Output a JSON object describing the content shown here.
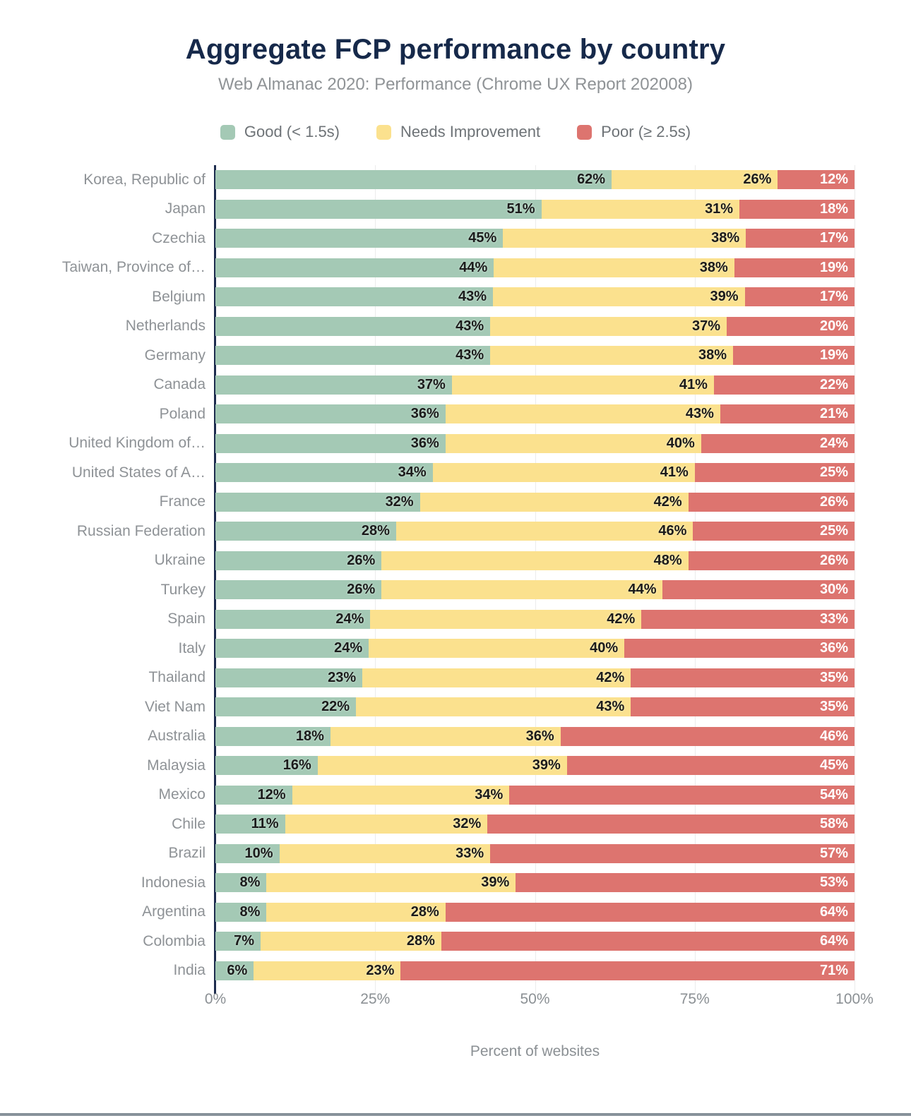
{
  "header": {
    "title": "Aggregate FCP performance by country",
    "subtitle": "Web Almanac 2020: Performance (Chrome UX Report 202008)"
  },
  "axis": {
    "ticks": [
      "0%",
      "25%",
      "50%",
      "75%",
      "100%"
    ],
    "tick_positions": [
      0,
      25,
      50,
      75,
      100
    ],
    "xlabel": "Percent of websites"
  },
  "colors": {
    "good": "#a4c9b5",
    "needs_improvement": "#fbe18e",
    "poor": "#dd746f",
    "title_navy": "#16294a",
    "axis_line": "#1d2c4e",
    "gridline": "#ececec"
  },
  "chart_data": {
    "type": "bar",
    "stacked": true,
    "orientation": "horizontal",
    "title": "Aggregate FCP performance by country",
    "subtitle": "Web Almanac 2020: Performance (Chrome UX Report 202008)",
    "xlabel": "Percent of websites",
    "xlim": [
      0,
      100
    ],
    "x_ticks": [
      0,
      25,
      50,
      75,
      100
    ],
    "grid": true,
    "legend_position": "top",
    "value_label_format": "percent",
    "categories": [
      "Korea, Republic of",
      "Japan",
      "Czechia",
      "Taiwan, Province of…",
      "Belgium",
      "Netherlands",
      "Germany",
      "Canada",
      "Poland",
      "United Kingdom of…",
      "United States of A…",
      "France",
      "Russian Federation",
      "Ukraine",
      "Turkey",
      "Spain",
      "Italy",
      "Thailand",
      "Viet Nam",
      "Australia",
      "Malaysia",
      "Mexico",
      "Chile",
      "Brazil",
      "Indonesia",
      "Argentina",
      "Colombia",
      "India"
    ],
    "series": [
      {
        "name": "Good (< 1.5s)",
        "color": "#a4c9b5",
        "values": [
          62,
          51,
          45,
          44,
          43,
          43,
          43,
          37,
          36,
          36,
          34,
          32,
          28,
          26,
          26,
          24,
          24,
          23,
          22,
          18,
          16,
          12,
          11,
          10,
          8,
          8,
          7,
          6
        ]
      },
      {
        "name": "Needs Improvement",
        "color": "#fbe18e",
        "values": [
          26,
          31,
          38,
          38,
          39,
          37,
          38,
          41,
          43,
          40,
          41,
          42,
          46,
          48,
          44,
          42,
          40,
          42,
          43,
          36,
          39,
          34,
          32,
          33,
          39,
          28,
          28,
          23
        ]
      },
      {
        "name": "Poor (≥ 2.5s)",
        "color": "#dd746f",
        "values": [
          12,
          18,
          17,
          19,
          17,
          20,
          19,
          22,
          21,
          24,
          25,
          26,
          25,
          26,
          30,
          33,
          36,
          35,
          35,
          46,
          45,
          54,
          58,
          57,
          53,
          64,
          64,
          71
        ]
      }
    ]
  }
}
